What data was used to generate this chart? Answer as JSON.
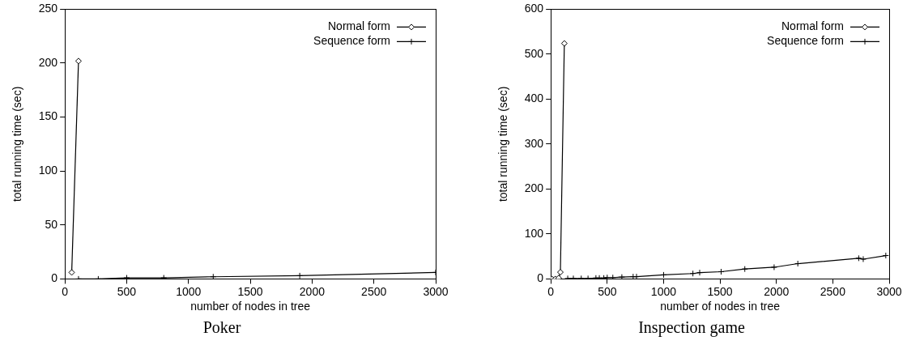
{
  "chart_data": [
    {
      "type": "line",
      "title": "Poker",
      "xlabel": "number of nodes in tree",
      "ylabel": "total running time (sec)",
      "xlim": [
        0,
        3000
      ],
      "xticks": [
        0,
        500,
        1000,
        1500,
        2000,
        2500,
        3000
      ],
      "ylim": [
        0,
        250
      ],
      "yticks": [
        0,
        50,
        100,
        150,
        200,
        250
      ],
      "legend": "top right",
      "grid": false,
      "series": [
        {
          "name": "Normal form",
          "color": "#000000",
          "marker": "diamond",
          "x": [
            55,
            110
          ],
          "values": [
            6,
            202
          ]
        },
        {
          "name": "Sequence form",
          "color": "#000000",
          "marker": "cross",
          "x": [
            110,
            270,
            500,
            800,
            1200,
            1900,
            3000
          ],
          "values": [
            0,
            0,
            1,
            1,
            2,
            3,
            6
          ]
        }
      ]
    },
    {
      "type": "line",
      "title": "Inspection game",
      "xlabel": "number of nodes in tree",
      "ylabel": "total running time (sec)",
      "xlim": [
        0,
        3000
      ],
      "xticks": [
        0,
        500,
        1000,
        1500,
        2000,
        2500,
        3000
      ],
      "ylim": [
        0,
        600
      ],
      "yticks": [
        0,
        100,
        200,
        300,
        400,
        500,
        600
      ],
      "legend": "top right",
      "grid": false,
      "series": [
        {
          "name": "Normal form",
          "color": "#000000",
          "marker": "diamond",
          "x": [
            10,
            40,
            70,
            85,
            120
          ],
          "values": [
            0,
            0,
            2,
            15,
            524
          ]
        },
        {
          "name": "Sequence form",
          "color": "#000000",
          "marker": "cross",
          "x": [
            150,
            200,
            270,
            330,
            400,
            430,
            470,
            500,
            550,
            630,
            730,
            760,
            1000,
            1260,
            1320,
            1510,
            1720,
            1980,
            2190,
            2730,
            2770,
            2970
          ],
          "values": [
            1,
            1,
            1,
            1,
            2,
            2,
            2,
            3,
            3,
            4,
            5,
            5,
            9,
            12,
            14,
            16,
            22,
            26,
            34,
            46,
            44,
            52
          ]
        }
      ]
    }
  ]
}
